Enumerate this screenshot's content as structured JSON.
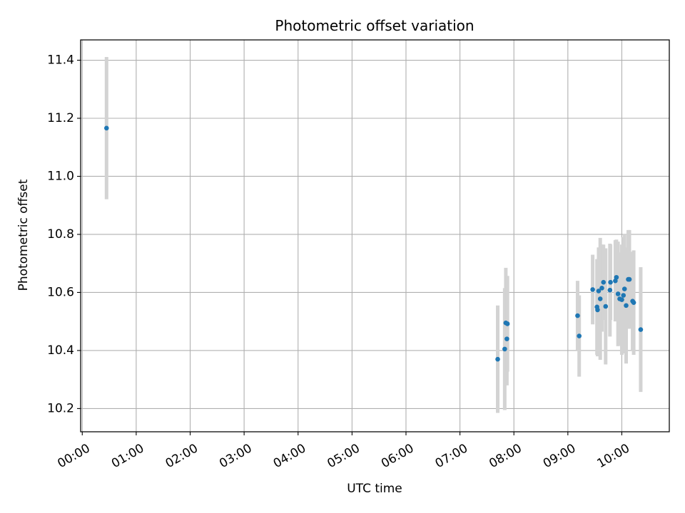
{
  "chart_data": {
    "type": "scatter",
    "title": "Photometric offset variation",
    "xlabel": "UTC time",
    "ylabel": "Photometric offset",
    "x_unit": "hours UTC",
    "xlim": [
      -0.03,
      10.88
    ],
    "ylim": [
      10.12,
      11.47
    ],
    "x_ticks": [
      {
        "value": 0,
        "label": "00:00"
      },
      {
        "value": 1,
        "label": "01:00"
      },
      {
        "value": 2,
        "label": "02:00"
      },
      {
        "value": 3,
        "label": "03:00"
      },
      {
        "value": 4,
        "label": "04:00"
      },
      {
        "value": 5,
        "label": "05:00"
      },
      {
        "value": 6,
        "label": "06:00"
      },
      {
        "value": 7,
        "label": "07:00"
      },
      {
        "value": 8,
        "label": "08:00"
      },
      {
        "value": 9,
        "label": "09:00"
      },
      {
        "value": 10,
        "label": "10:00"
      }
    ],
    "y_ticks": [
      {
        "value": 10.2,
        "label": "10.2"
      },
      {
        "value": 10.4,
        "label": "10.4"
      },
      {
        "value": 10.6,
        "label": "10.6"
      },
      {
        "value": 10.8,
        "label": "10.8"
      },
      {
        "value": 11.0,
        "label": "11.0"
      },
      {
        "value": 11.2,
        "label": "11.2"
      },
      {
        "value": 11.4,
        "label": "11.4"
      }
    ],
    "grid": true,
    "marker_color": "#1f77b4",
    "errorbar_color": "#d3d3d3",
    "points": [
      {
        "x": 0.45,
        "y": 11.166,
        "err": 0.245
      },
      {
        "x": 7.7,
        "y": 10.37,
        "err": 0.185
      },
      {
        "x": 7.83,
        "y": 10.405,
        "err": 0.21
      },
      {
        "x": 7.85,
        "y": 10.495,
        "err": 0.19
      },
      {
        "x": 7.87,
        "y": 10.44,
        "err": 0.16
      },
      {
        "x": 7.88,
        "y": 10.492,
        "err": 0.165
      },
      {
        "x": 9.18,
        "y": 10.52,
        "err": 0.12
      },
      {
        "x": 9.21,
        "y": 10.45,
        "err": 0.14
      },
      {
        "x": 9.46,
        "y": 10.61,
        "err": 0.12
      },
      {
        "x": 9.54,
        "y": 10.55,
        "err": 0.165
      },
      {
        "x": 9.55,
        "y": 10.54,
        "err": 0.16
      },
      {
        "x": 9.57,
        "y": 10.605,
        "err": 0.15
      },
      {
        "x": 9.6,
        "y": 10.578,
        "err": 0.21
      },
      {
        "x": 9.63,
        "y": 10.615,
        "err": 0.15
      },
      {
        "x": 9.66,
        "y": 10.635,
        "err": 0.13
      },
      {
        "x": 9.7,
        "y": 10.552,
        "err": 0.2
      },
      {
        "x": 9.78,
        "y": 10.608,
        "err": 0.16
      },
      {
        "x": 9.79,
        "y": 10.635,
        "err": 0.13
      },
      {
        "x": 9.88,
        "y": 10.64,
        "err": 0.14
      },
      {
        "x": 9.9,
        "y": 10.652,
        "err": 0.13
      },
      {
        "x": 9.93,
        "y": 10.595,
        "err": 0.18
      },
      {
        "x": 9.96,
        "y": 10.578,
        "err": 0.16
      },
      {
        "x": 10.0,
        "y": 10.575,
        "err": 0.19
      },
      {
        "x": 10.03,
        "y": 10.59,
        "err": 0.2
      },
      {
        "x": 10.05,
        "y": 10.612,
        "err": 0.19
      },
      {
        "x": 10.08,
        "y": 10.555,
        "err": 0.2
      },
      {
        "x": 10.12,
        "y": 10.645,
        "err": 0.17
      },
      {
        "x": 10.14,
        "y": 10.645,
        "err": 0.17
      },
      {
        "x": 10.2,
        "y": 10.57,
        "err": 0.17
      },
      {
        "x": 10.22,
        "y": 10.565,
        "err": 0.18
      },
      {
        "x": 10.35,
        "y": 10.472,
        "err": 0.215
      }
    ]
  }
}
